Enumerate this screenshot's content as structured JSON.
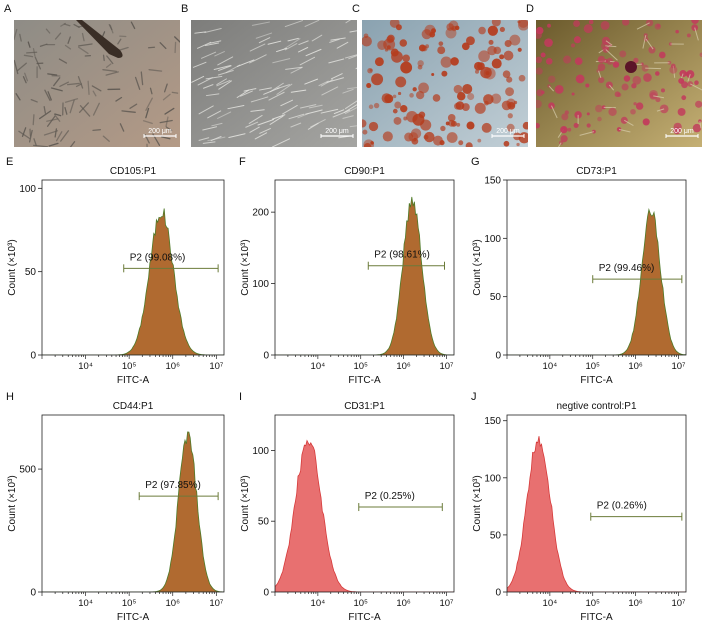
{
  "micrographs": [
    {
      "letter": "A",
      "scale_label": "200 μm",
      "bg1": "#8e8c86",
      "bg2": "#b49a86",
      "cell": "#5b5650"
    },
    {
      "letter": "B",
      "scale_label": "200 μm",
      "bg1": "#7d7d7b",
      "bg2": "#a5a5a2",
      "cell": "#e6e6e2"
    },
    {
      "letter": "C",
      "scale_label": "200 μm",
      "bg1": "#8aa2b0",
      "bg2": "#c2cfd6",
      "cell": "#b53b1c"
    },
    {
      "letter": "D",
      "scale_label": "200 μm",
      "bg1": "#6b5a2c",
      "bg2": "#c5b074",
      "cell": "#c23a5c"
    }
  ],
  "chart_data": [
    {
      "panel": "E",
      "type": "area",
      "title": "CD105:P1",
      "xlabel": "FITC-A",
      "ylabel": "Count (×10³)",
      "x_scale": "log",
      "xlim": [
        1000,
        15000000
      ],
      "ylim": [
        0,
        105
      ],
      "yticks": [
        0,
        50,
        100
      ],
      "xticks": [
        "10⁴",
        "10⁵",
        "10⁶",
        "10⁷"
      ],
      "gate": {
        "label": "P2 (99.08%)",
        "from": 75000,
        "to": 11000000,
        "y": 52
      },
      "peak_x": 550000,
      "peak_y": 88,
      "sigma_log10": 0.27,
      "color": "#b06a30",
      "edge": "#4f7a28"
    },
    {
      "panel": "F",
      "type": "area",
      "title": "CD90:P1",
      "xlabel": "FITC-A",
      "ylabel": "Count (×10³)",
      "x_scale": "log",
      "xlim": [
        1000,
        15000000
      ],
      "ylim": [
        0,
        245
      ],
      "yticks": [
        0,
        100,
        200
      ],
      "xticks": [
        "10⁴",
        "10⁵",
        "10⁶",
        "10⁷"
      ],
      "gate": {
        "label": "P2 (98.61%)",
        "from": 150000,
        "to": 9000000,
        "y": 125
      },
      "peak_x": 1600000,
      "peak_y": 222,
      "sigma_log10": 0.22,
      "color": "#b06a30",
      "edge": "#4f7a28"
    },
    {
      "panel": "G",
      "type": "area",
      "title": "CD73:P1",
      "xlabel": "FITC-A",
      "ylabel": "Count (×10³)",
      "x_scale": "log",
      "xlim": [
        1000,
        15000000
      ],
      "ylim": [
        0,
        150
      ],
      "yticks": [
        0,
        50,
        100,
        150
      ],
      "xticks": [
        "10⁴",
        "10⁵",
        "10⁶",
        "10⁷"
      ],
      "gate": {
        "label": "P2 (99.46%)",
        "from": 100000,
        "to": 12000000,
        "y": 65
      },
      "peak_x": 2300000,
      "peak_y": 125,
      "sigma_log10": 0.22,
      "color": "#b06a30",
      "edge": "#4f7a28"
    },
    {
      "panel": "H",
      "type": "area",
      "title": "CD44:P1",
      "xlabel": "FITC-A",
      "ylabel": "Count (×10³)",
      "x_scale": "log",
      "xlim": [
        1000,
        15000000
      ],
      "ylim": [
        0,
        720
      ],
      "yticks": [
        0,
        500
      ],
      "xticks": [
        "10⁴",
        "10⁵",
        "10⁶",
        "10⁷"
      ],
      "gate": {
        "label": "P2 (97.85%)",
        "from": 170000,
        "to": 11000000,
        "y": 390
      },
      "peak_x": 2200000,
      "peak_y": 650,
      "sigma_log10": 0.21,
      "color": "#b06a30",
      "edge": "#4f7a28"
    },
    {
      "panel": "I",
      "type": "area",
      "title": "CD31:P1",
      "xlabel": "FITC-A",
      "ylabel": "Count (×10³)",
      "x_scale": "log",
      "xlim": [
        1000,
        15000000
      ],
      "ylim": [
        0,
        125
      ],
      "yticks": [
        0,
        50,
        100
      ],
      "xticks": [
        "10⁴",
        "10⁵",
        "10⁶",
        "10⁷"
      ],
      "gate": {
        "label": "P2 (0.25%)",
        "from": 90000,
        "to": 8000000,
        "y": 60
      },
      "peak_x": 6000,
      "peak_y": 110,
      "sigma_log10": 0.3,
      "color": "#e87070",
      "edge": "#d63a3a"
    },
    {
      "panel": "J",
      "type": "area",
      "title": "negtive control:P1",
      "xlabel": "FITC-A",
      "ylabel": "Count (×10³)",
      "x_scale": "log",
      "xlim": [
        1000,
        15000000
      ],
      "ylim": [
        0,
        155
      ],
      "yticks": [
        0,
        50,
        100,
        150
      ],
      "xticks": [
        "10⁴",
        "10⁵",
        "10⁶",
        "10⁷"
      ],
      "gate": {
        "label": "P2 (0.26%)",
        "from": 90000,
        "to": 12000000,
        "y": 66
      },
      "peak_x": 5500,
      "peak_y": 138,
      "sigma_log10": 0.27,
      "color": "#e87070",
      "edge": "#d63a3a"
    }
  ]
}
